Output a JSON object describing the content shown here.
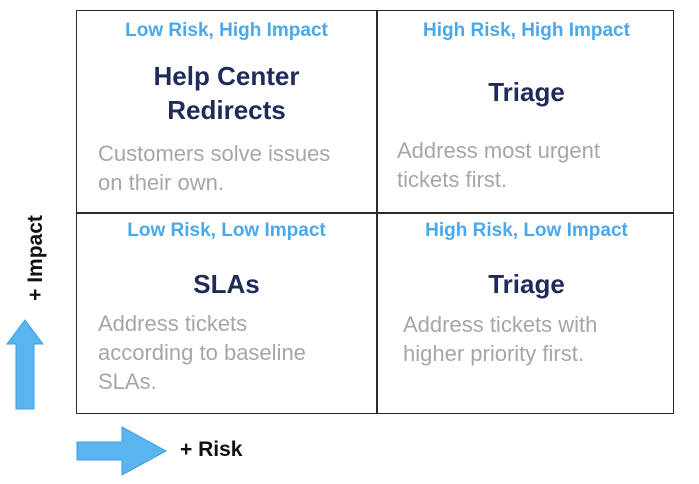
{
  "colors": {
    "quadrant_label": "#4aa8ec",
    "quadrant_title": "#1f2b5a",
    "quadrant_desc": "#a6a6a6",
    "arrow_fill": "#5ab4f0",
    "border": "#2b2b2b"
  },
  "axes": {
    "y_label": "+ Impact",
    "x_label": "+ Risk",
    "y_arrow_icon": "arrow-up-icon",
    "x_arrow_icon": "arrow-right-icon"
  },
  "quadrants": {
    "top_left": {
      "label": "Low Risk, High Impact",
      "title_lines": [
        "Help Center",
        "Redirects"
      ],
      "desc_lines": [
        "Customers solve issues",
        "on their own."
      ]
    },
    "top_right": {
      "label": "High Risk, High Impact",
      "title_lines": [
        "Triage"
      ],
      "desc_lines": [
        "Address most urgent",
        "tickets first."
      ]
    },
    "bottom_left": {
      "label": "Low Risk, Low Impact",
      "title_lines": [
        "SLAs"
      ],
      "desc_lines": [
        "Address tickets",
        "according to baseline",
        "SLAs."
      ]
    },
    "bottom_right": {
      "label": "High Risk, Low Impact",
      "title_lines": [
        "Triage"
      ],
      "desc_lines": [
        "Address tickets with",
        "higher priority first."
      ]
    }
  }
}
